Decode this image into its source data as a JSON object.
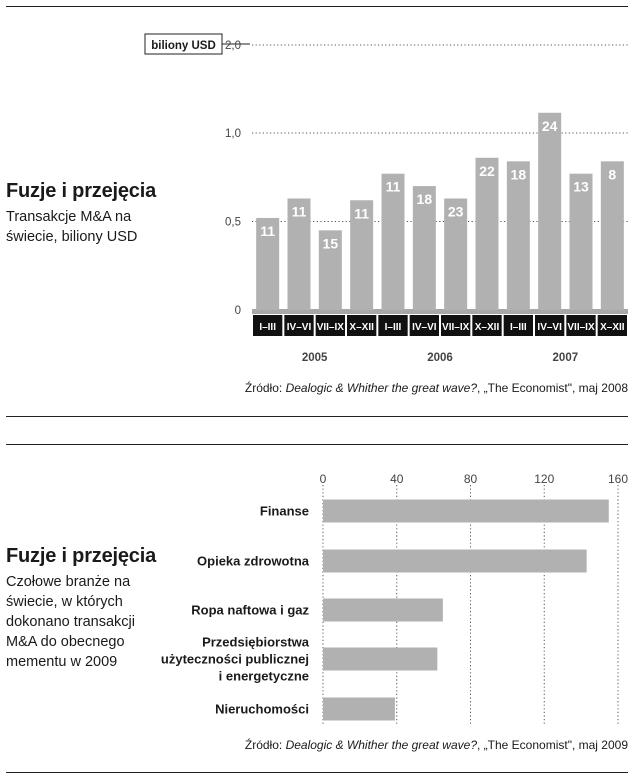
{
  "top": {
    "title": "Fuzje i przejęcia",
    "subtitle": "Transakcje M&A na świecie, biliony USD",
    "source_prefix": "Źródło: ",
    "source_italic": "Dealogic & Whither the great wave?",
    "source_suffix": ", „The Economist\", maj 2008"
  },
  "bottom": {
    "title": "Fuzje i przejęcia",
    "subtitle": "Czołowe branże na świecie, w których dokonano transakcji M&A do obecnego mementu w 2009",
    "source_prefix": "Źródło: ",
    "source_italic": "Dealogic & Whither the great wave?",
    "source_suffix": ", „The Economist\", maj 2009"
  },
  "chart_data": [
    {
      "type": "bar",
      "unit_label": "biliony USD",
      "ylim": [
        0,
        2.0
      ],
      "yticks": [
        0,
        0.5,
        1.0,
        2.0
      ],
      "ytick_labels": [
        "0",
        "0,5",
        "1,0",
        "2,0"
      ],
      "categories": [
        "I–III",
        "IV–VI",
        "VII–IX",
        "X–XII",
        "I–III",
        "IV–VI",
        "VII–IX",
        "X–XII",
        "I–III",
        "IV–VI",
        "VII–IX",
        "X–XII"
      ],
      "years": [
        "2005",
        "2006",
        "2007"
      ],
      "values": [
        0.52,
        0.63,
        0.45,
        0.62,
        0.77,
        0.7,
        0.63,
        0.86,
        0.84,
        1.23,
        0.77,
        0.84
      ],
      "data_labels": [
        "11",
        "11",
        "15",
        "11",
        "11",
        "18",
        "23",
        "22",
        "18",
        "24",
        "13",
        "8"
      ],
      "colors": {
        "bar": "#b1b1b1",
        "label": "#ffffff",
        "tick_box": "#111111",
        "baseline": "#a8a8a8"
      }
    },
    {
      "type": "bar",
      "orientation": "horizontal",
      "categories": [
        [
          "Finanse"
        ],
        [
          "Opieka zdrowotna"
        ],
        [
          "Ropa naftowa i gaz"
        ],
        [
          "Przedsiębiorstwa",
          "użyteczności publicznej",
          "i energetyczne"
        ],
        [
          "Nieruchomości"
        ]
      ],
      "values": [
        155,
        143,
        65,
        62,
        39
      ],
      "xlim": [
        0,
        160
      ],
      "xticks": [
        0,
        40,
        80,
        120,
        160
      ],
      "xtick_labels": [
        "0",
        "40",
        "80",
        "120",
        "160"
      ],
      "colors": {
        "bar": "#b1b1b1"
      }
    }
  ]
}
